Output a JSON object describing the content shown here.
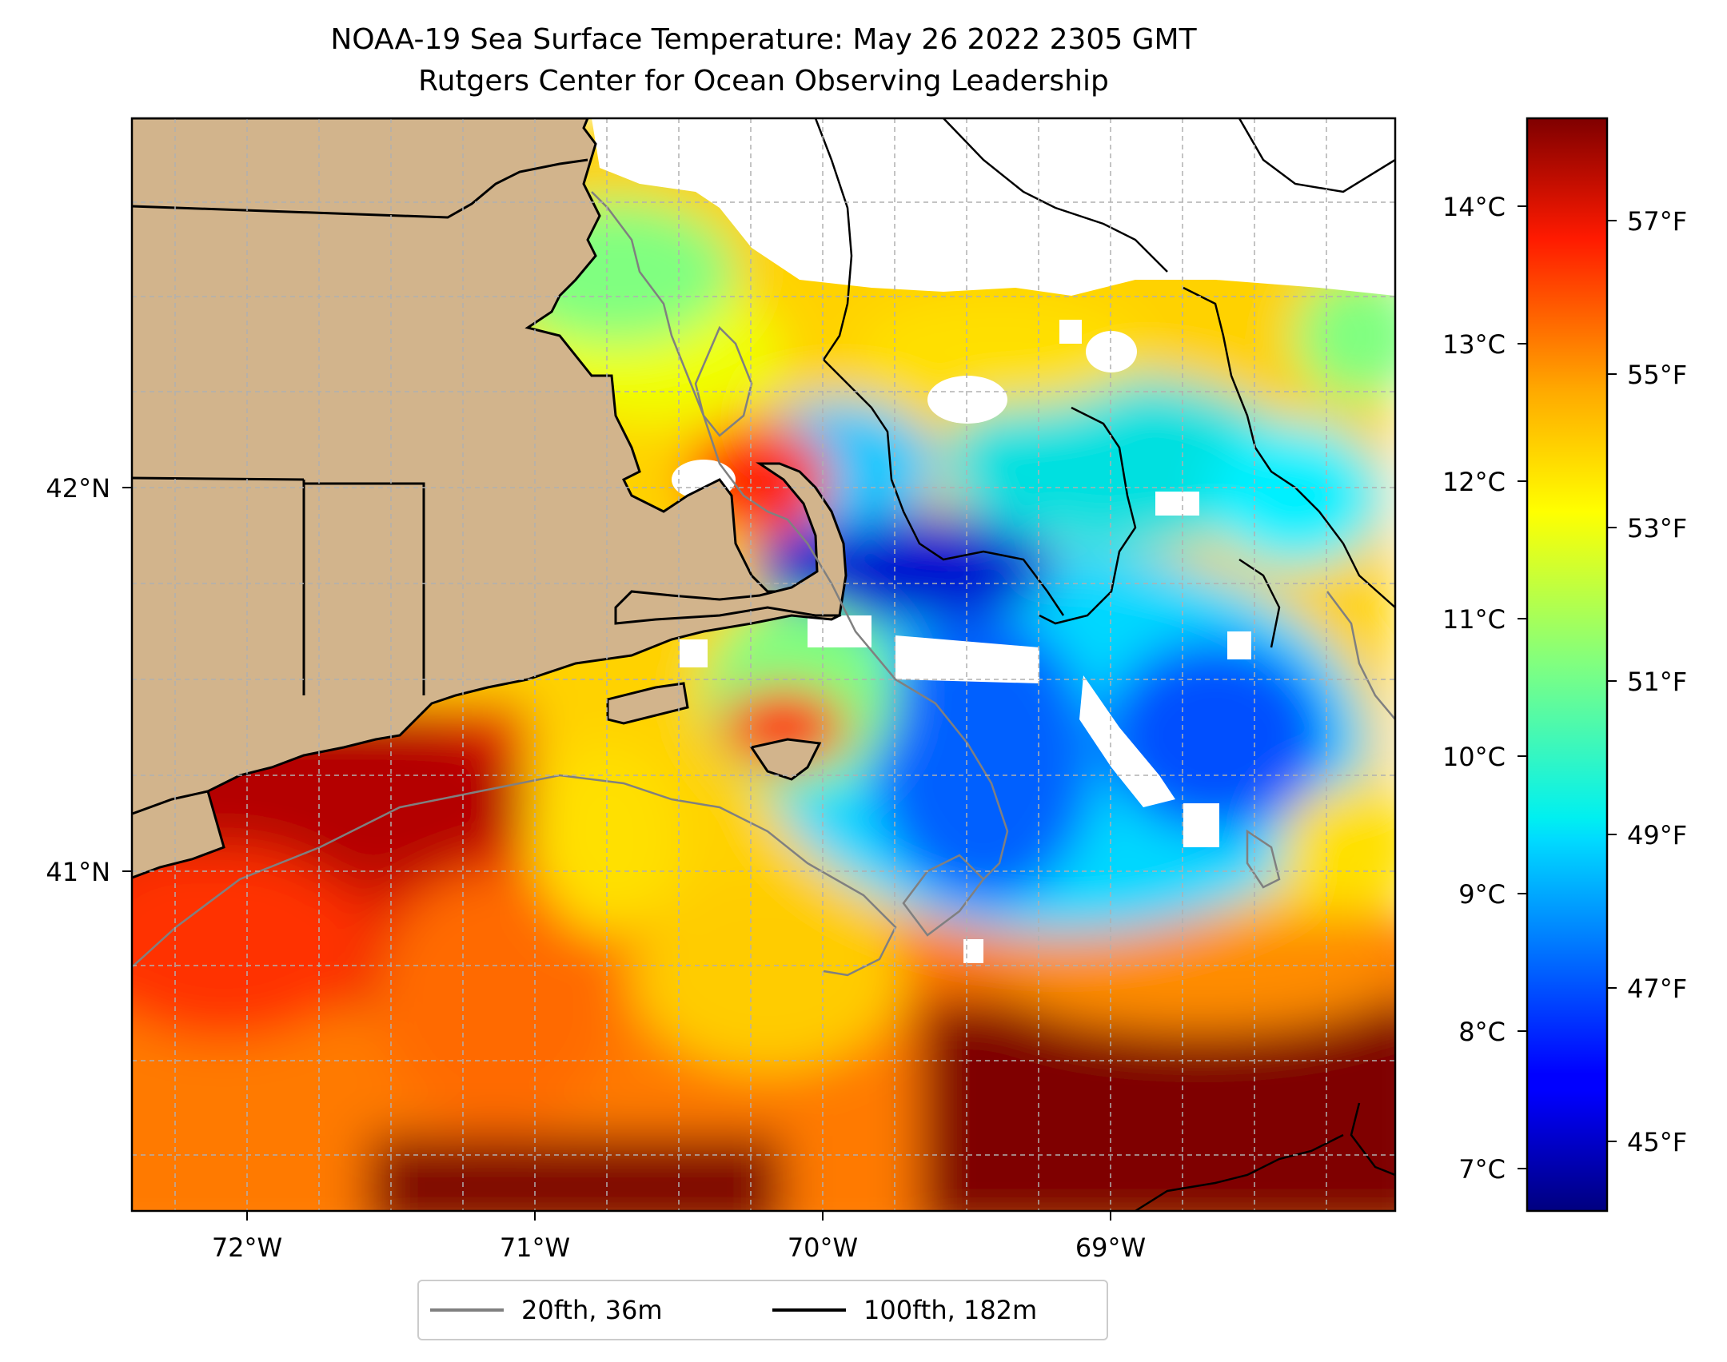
{
  "title": "NOAA-19 Sea Surface Temperature: May 26 2022 2305 GMT",
  "subtitle": "Rutgers Center for Ocean Observing Leadership",
  "map": {
    "lon_ticks": [
      "72°W",
      "71°W",
      "70°W",
      "69°W"
    ],
    "lat_ticks": [
      "42°N",
      "41°N"
    ],
    "colors": {
      "land": "#d2b48c",
      "coast": "#000000",
      "contour20": "#808080",
      "grid": "#b0b0b0"
    }
  },
  "colorbar": {
    "celsius_ticks": [
      "14°C",
      "13°C",
      "12°C",
      "11°C",
      "10°C",
      "9°C",
      "8°C",
      "7°C"
    ],
    "fahrenheit_ticks": [
      "57°F",
      "55°F",
      "53°F",
      "51°F",
      "49°F",
      "47°F",
      "45°F"
    ],
    "colormap": "jet"
  },
  "legend": {
    "items": [
      {
        "label": "20fth, 36m",
        "color": "#808080"
      },
      {
        "label": "100fth, 182m",
        "color": "#000000"
      }
    ]
  }
}
